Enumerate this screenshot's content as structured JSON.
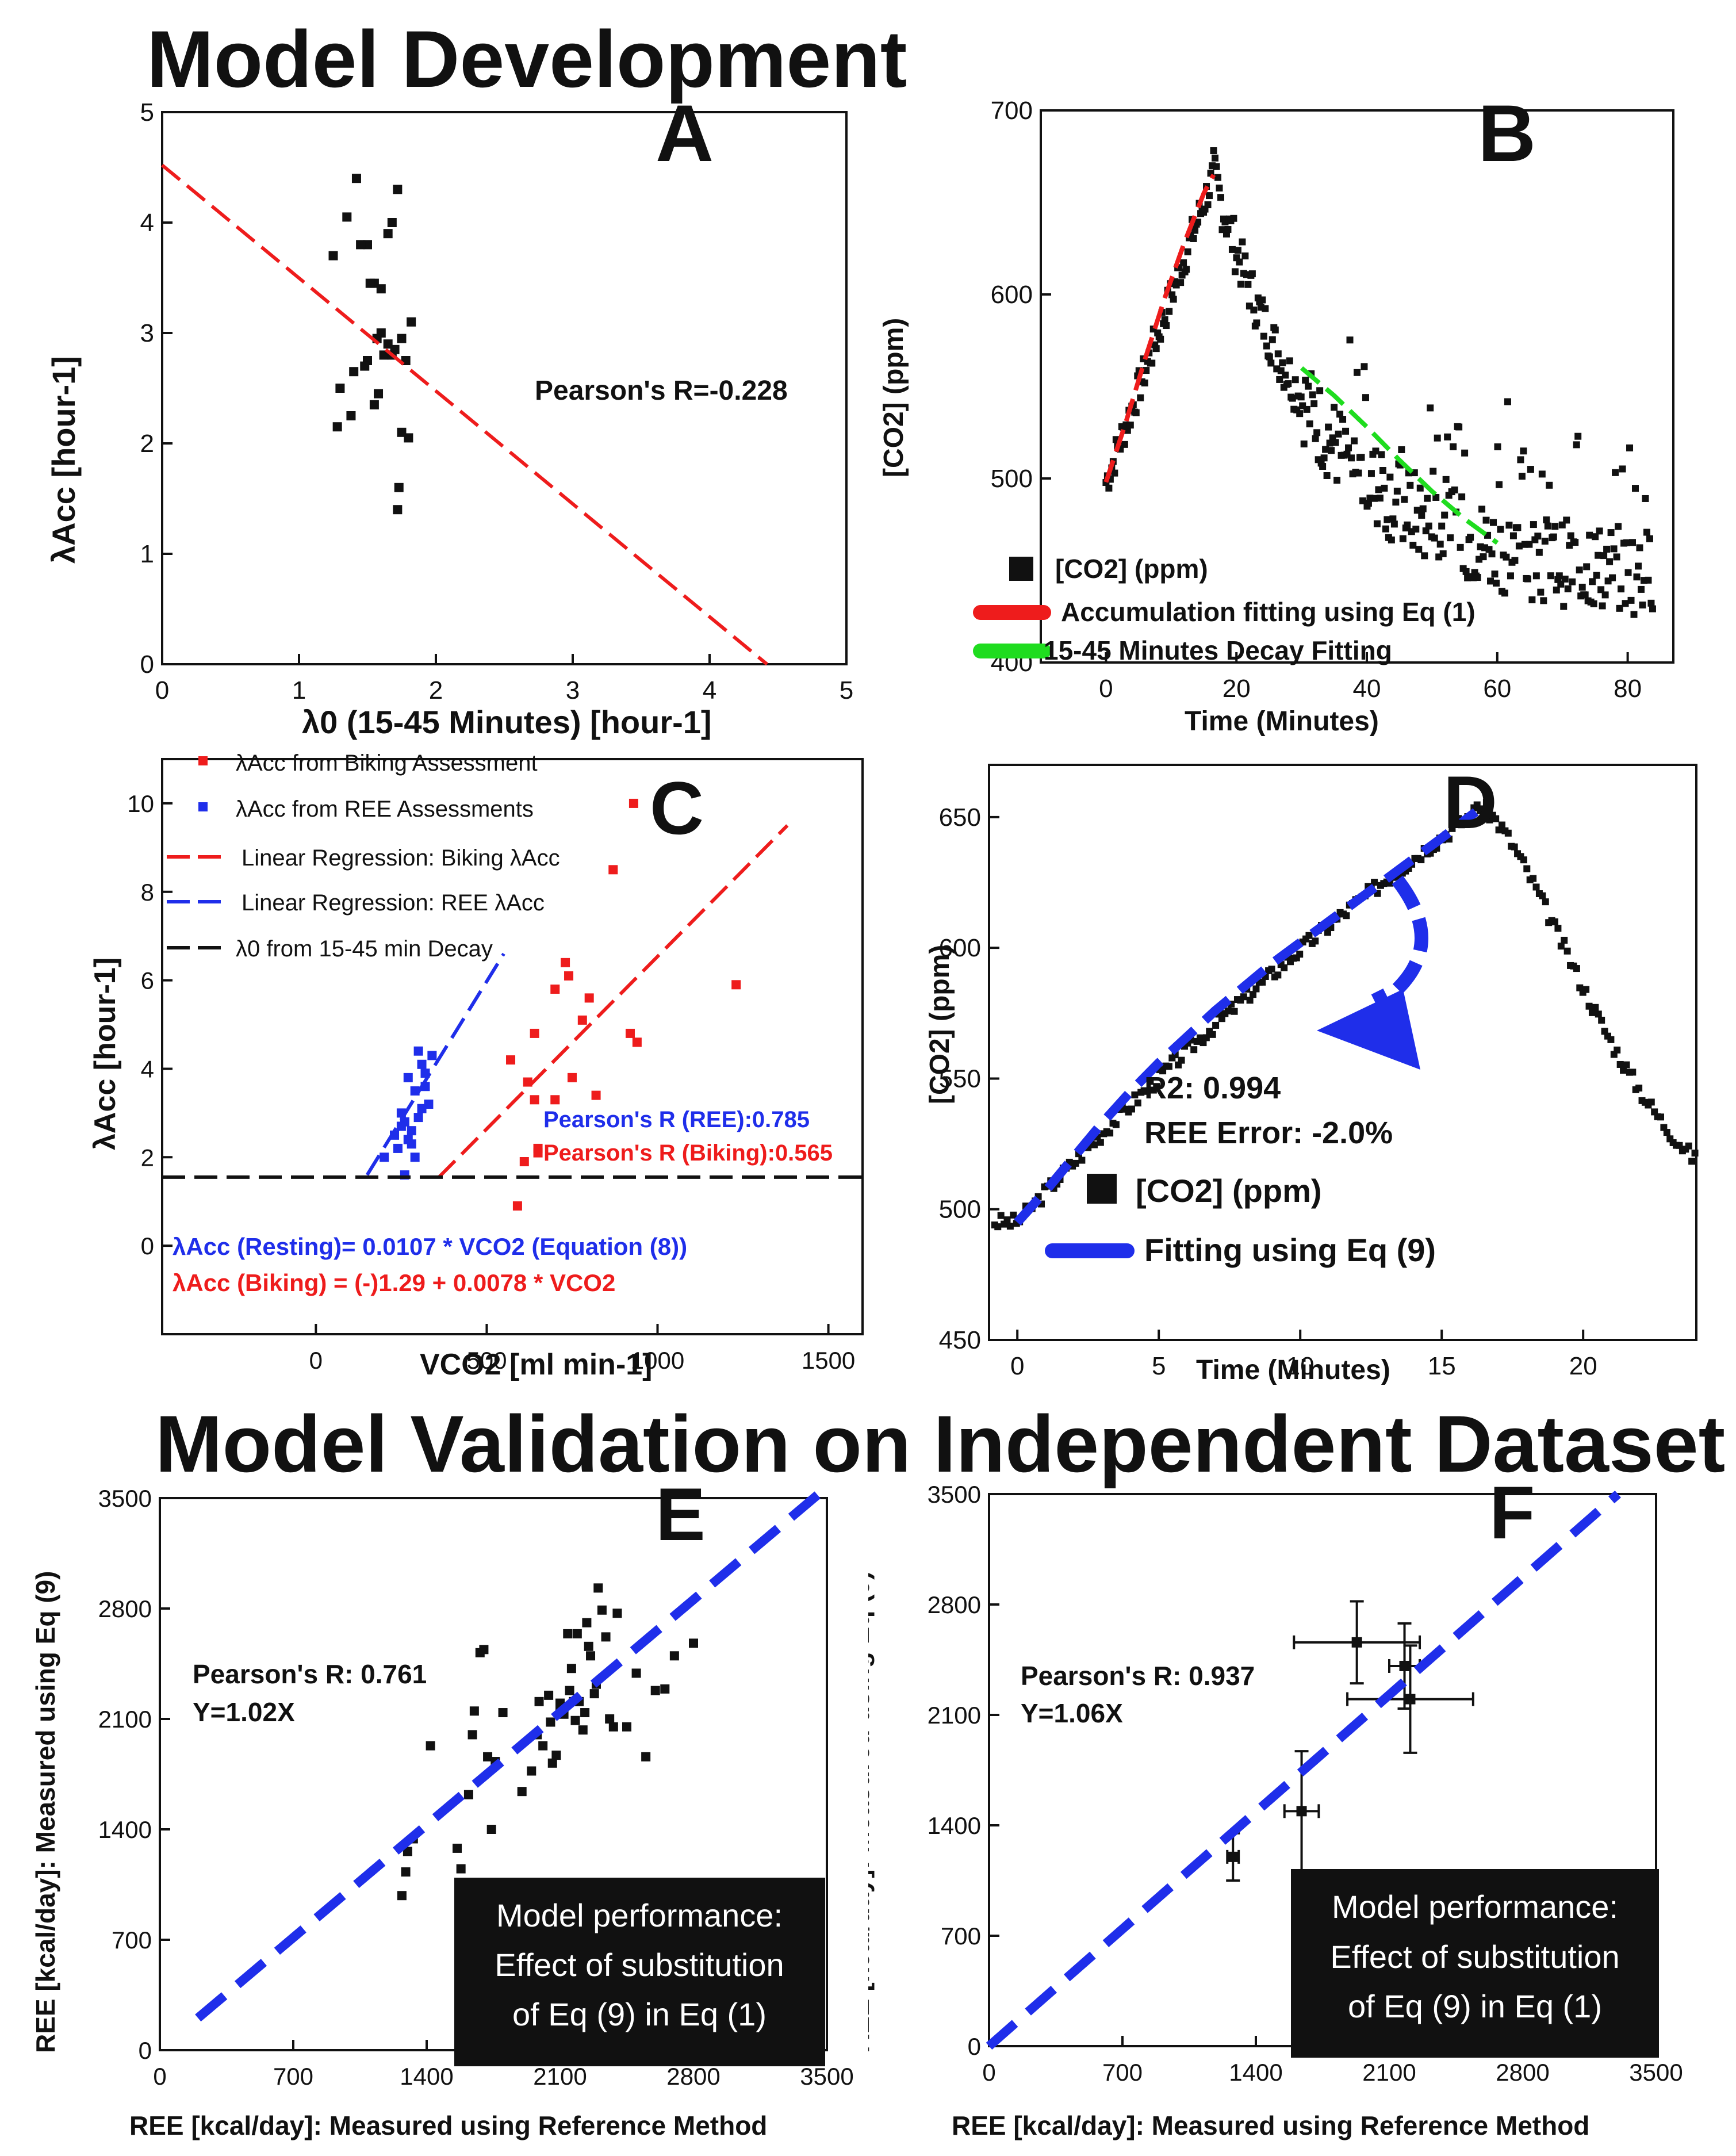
{
  "headings": {
    "development": "Model Development",
    "validation": "Model Validation on Independent Dataset"
  },
  "colors": {
    "red": "#ee1c1c",
    "blue": "#1f2eea",
    "green": "#1fdc1f",
    "black": "#111111"
  },
  "chart_data": [
    {
      "id": "A",
      "type": "scatter",
      "panel_label": "A",
      "xlabel": "λ0 (15-45 Minutes) [hour-1]",
      "ylabel": "λAcc [hour-1]",
      "xlim": [
        0,
        5
      ],
      "ylim": [
        0,
        5
      ],
      "xticks": [
        0,
        1,
        2,
        3,
        4,
        5
      ],
      "yticks": [
        0,
        1,
        2,
        3,
        4,
        5
      ],
      "annotation": "Pearson's R=-0.228",
      "series": [
        {
          "kind": "points",
          "color": "#111111",
          "x": [
            1.25,
            1.35,
            1.42,
            1.5,
            1.55,
            1.6,
            1.65,
            1.72,
            1.68,
            1.75,
            1.3,
            1.4,
            1.45,
            1.5,
            1.52,
            1.57,
            1.62,
            1.68,
            1.73,
            1.8,
            1.28,
            1.38,
            1.48,
            1.55,
            1.6,
            1.65,
            1.7,
            1.78,
            1.82,
            1.58,
            1.72,
            1.75
          ],
          "y": [
            3.7,
            4.05,
            4.4,
            3.8,
            3.45,
            3.0,
            2.9,
            4.3,
            4.0,
            2.1,
            2.5,
            2.65,
            3.8,
            2.75,
            3.45,
            2.95,
            2.8,
            2.8,
            1.6,
            2.05,
            2.15,
            2.25,
            2.7,
            2.35,
            3.4,
            3.9,
            2.85,
            2.75,
            3.1,
            2.45,
            1.4,
            2.95
          ]
        },
        {
          "kind": "dash",
          "color": "#ee1c1c",
          "x": [
            0,
            4.42
          ],
          "y": [
            4.52,
            0
          ]
        }
      ]
    },
    {
      "id": "B",
      "type": "scatter",
      "panel_label": "B",
      "xlabel": "Time (Minutes)",
      "ylabel": "[CO2] (ppm)",
      "xlim": [
        -10,
        87
      ],
      "ylim": [
        400,
        700
      ],
      "xticks": [
        0,
        20,
        40,
        60,
        80
      ],
      "yticks": [
        400,
        500,
        600,
        700
      ],
      "legend": [
        "[CO2] (ppm)",
        "Accumulation fitting using Eq (1)",
        "15-45 Minutes Decay Fitting"
      ],
      "series": [
        {
          "kind": "dash",
          "color": "#ee1c1c",
          "x": [
            0,
            3,
            6,
            9,
            12,
            15,
            16.5
          ],
          "y": [
            498,
            530,
            565,
            598,
            628,
            655,
            665
          ]
        },
        {
          "kind": "dash",
          "color": "#1fdc1f",
          "x": [
            30,
            35,
            40,
            45,
            50,
            55,
            60
          ],
          "y": [
            560,
            545,
            528,
            510,
            493,
            478,
            465
          ]
        }
      ]
    },
    {
      "id": "C",
      "type": "scatter",
      "panel_label": "C",
      "xlabel": "VCO2 [ml min-1]",
      "ylabel": "λAcc [hour-1]",
      "xlim": [
        -450,
        1600
      ],
      "ylim": [
        -2,
        11
      ],
      "xticks": [
        0,
        500,
        1000,
        1500
      ],
      "yticks": [
        0,
        2,
        4,
        6,
        8,
        10
      ],
      "legend": [
        "λAcc from Biking Assessment",
        "λAcc from REE Assessments",
        "Linear Regression: Biking λAcc",
        "Linear Regression: REE λAcc",
        "λ0 from 15-45 min Decay"
      ],
      "annotations": [
        "Pearson's R (REE):0.785",
        "Pearson's R (Biking):0.565",
        "λAcc (Resting)=  0.0107 * VCO2 (Equation (8))",
        "λAcc (Biking) = (-)1.29 + 0.0078 * VCO2"
      ],
      "series": [
        {
          "name": "λAcc from Biking Assessment",
          "kind": "points",
          "color": "#ee1c1c",
          "x": [
            930,
            870,
            730,
            740,
            700,
            800,
            780,
            640,
            570,
            620,
            700,
            750,
            920,
            940,
            1230,
            820,
            650,
            610,
            650,
            590,
            640
          ],
          "y": [
            10,
            8.5,
            6.4,
            6.1,
            5.8,
            5.6,
            5.1,
            4.8,
            4.2,
            3.7,
            3.3,
            3.8,
            4.8,
            4.6,
            5.9,
            3.4,
            2.2,
            1.9,
            2.1,
            0.9,
            3.3
          ]
        },
        {
          "name": "λAcc from REE Assessments",
          "kind": "points",
          "color": "#1f2eea",
          "x": [
            300,
            310,
            320,
            270,
            290,
            250,
            260,
            280,
            300,
            330,
            240,
            270,
            200,
            230,
            250,
            320,
            340,
            280,
            290,
            260,
            310
          ],
          "y": [
            4.4,
            4.1,
            3.9,
            3.8,
            3.5,
            3.0,
            2.8,
            2.6,
            2.9,
            3.2,
            2.2,
            2.4,
            2.0,
            2.5,
            2.7,
            3.6,
            4.3,
            2.3,
            2.0,
            1.6,
            3.1
          ]
        },
        {
          "name": "Linear Regression: Biking λAcc",
          "kind": "dash",
          "color": "#ee1c1c",
          "x": [
            360,
            1380
          ],
          "y": [
            1.55,
            9.5
          ]
        },
        {
          "name": "Linear Regression: REE λAcc",
          "kind": "dash",
          "color": "#1f2eea",
          "x": [
            150,
            550
          ],
          "y": [
            1.6,
            6.6
          ]
        },
        {
          "name": "λ0 from 15-45 min Decay",
          "kind": "dash",
          "color": "#111111",
          "x": [
            -450,
            1600
          ],
          "y": [
            1.55,
            1.55
          ]
        }
      ]
    },
    {
      "id": "D",
      "type": "scatter",
      "panel_label": "D",
      "xlabel": "Time (Minutes)",
      "ylabel": "[CO2] (ppm)",
      "xlim": [
        -1,
        24
      ],
      "ylim": [
        450,
        670
      ],
      "xticks": [
        0,
        5,
        10,
        15,
        20
      ],
      "yticks": [
        450,
        500,
        550,
        600,
        650
      ],
      "legend": [
        "[CO2] (ppm)",
        "Fitting using Eq (9)"
      ],
      "annotations": [
        "R2: 0.994",
        "REE Error: -2.0%"
      ],
      "series": [
        {
          "kind": "dash",
          "color": "#1f2eea",
          "x": [
            0,
            1,
            2,
            3,
            4,
            5,
            6,
            7,
            8,
            9,
            10,
            11,
            12,
            13,
            14,
            15,
            16.2
          ],
          "y": [
            495,
            507,
            520,
            533,
            545,
            556,
            566,
            576,
            585,
            594,
            602,
            610,
            618,
            626,
            634,
            642,
            652
          ]
        }
      ]
    },
    {
      "id": "E",
      "type": "scatter",
      "panel_label": "E",
      "xlabel": "REE [kcal/day]: Measured using Reference Method",
      "ylabel": "REE [kcal/day]: Measured using Eq (9)",
      "xlim": [
        0,
        3500
      ],
      "ylim": [
        0,
        3500
      ],
      "xticks": [
        0,
        700,
        1400,
        2100,
        2800,
        3500
      ],
      "yticks": [
        0,
        700,
        1400,
        2100,
        2800,
        3500
      ],
      "annotations": [
        "Pearson's R: 0.761",
        "Y=1.02X"
      ],
      "box": [
        "Model performance:",
        "Effect of substitution",
        "of Eq (9) in Eq (1)"
      ],
      "series": [
        {
          "kind": "points",
          "color": "#111111",
          "x": [
            1270,
            1290,
            1300,
            1330,
            1420,
            1560,
            1580,
            1620,
            1640,
            1650,
            1680,
            1700,
            1720,
            1740,
            1760,
            1800,
            1900,
            1950,
            1980,
            2010,
            2040,
            2060,
            2080,
            2100,
            2120,
            2140,
            2150,
            2170,
            2180,
            2190,
            2200,
            2220,
            2240,
            2250,
            2260,
            2280,
            2300,
            2320,
            2340,
            2360,
            2380,
            2400,
            2450,
            2500,
            2550,
            2600,
            2650,
            2700,
            2800,
            2100,
            2230,
            2290,
            2160,
            1990,
            2050
          ],
          "y": [
            980,
            1130,
            1260,
            1340,
            1930,
            1280,
            1150,
            1620,
            2000,
            2150,
            2520,
            2540,
            1860,
            1400,
            1830,
            2140,
            1640,
            1770,
            2000,
            1930,
            2250,
            1820,
            1870,
            2200,
            2130,
            2640,
            2280,
            2210,
            2090,
            2640,
            2210,
            2030,
            2710,
            2560,
            2500,
            2260,
            2930,
            2790,
            2620,
            2100,
            2050,
            2770,
            2050,
            2390,
            1860,
            2280,
            2290,
            2500,
            2580,
            2160,
            2140,
            2320,
            2420,
            2210,
            2080
          ]
        },
        {
          "kind": "dash",
          "color": "#1f2eea",
          "x": [
            200,
            3500
          ],
          "y": [
            204,
            3570
          ]
        }
      ]
    },
    {
      "id": "F",
      "type": "scatter",
      "panel_label": "F",
      "xlabel": "REE [kcal/day]: Measured using Reference Method",
      "ylabel": "REE [kcal/day]: Measured using Eq (9)",
      "xlim": [
        0,
        3500
      ],
      "ylim": [
        0,
        3500
      ],
      "xticks": [
        0,
        700,
        1400,
        2100,
        2800,
        3500
      ],
      "yticks": [
        0,
        700,
        1400,
        2100,
        2800,
        3500
      ],
      "annotations": [
        "Pearson's R: 0.937",
        "Y=1.06X"
      ],
      "box": [
        "Model performance:",
        "Effect of substitution",
        "of Eq (9) in Eq (1)"
      ],
      "series": [
        {
          "kind": "errorpoints",
          "color": "#111111",
          "x": [
            1280,
            1640,
            1930,
            2180,
            2210
          ],
          "y": [
            1200,
            1490,
            2560,
            2410,
            2200
          ],
          "xerr": [
            30,
            90,
            330,
            80,
            330
          ],
          "yerr": [
            150,
            380,
            260,
            270,
            340
          ]
        },
        {
          "kind": "dash",
          "color": "#1f2eea",
          "x": [
            0,
            3300
          ],
          "y": [
            0,
            3500
          ]
        }
      ]
    }
  ]
}
